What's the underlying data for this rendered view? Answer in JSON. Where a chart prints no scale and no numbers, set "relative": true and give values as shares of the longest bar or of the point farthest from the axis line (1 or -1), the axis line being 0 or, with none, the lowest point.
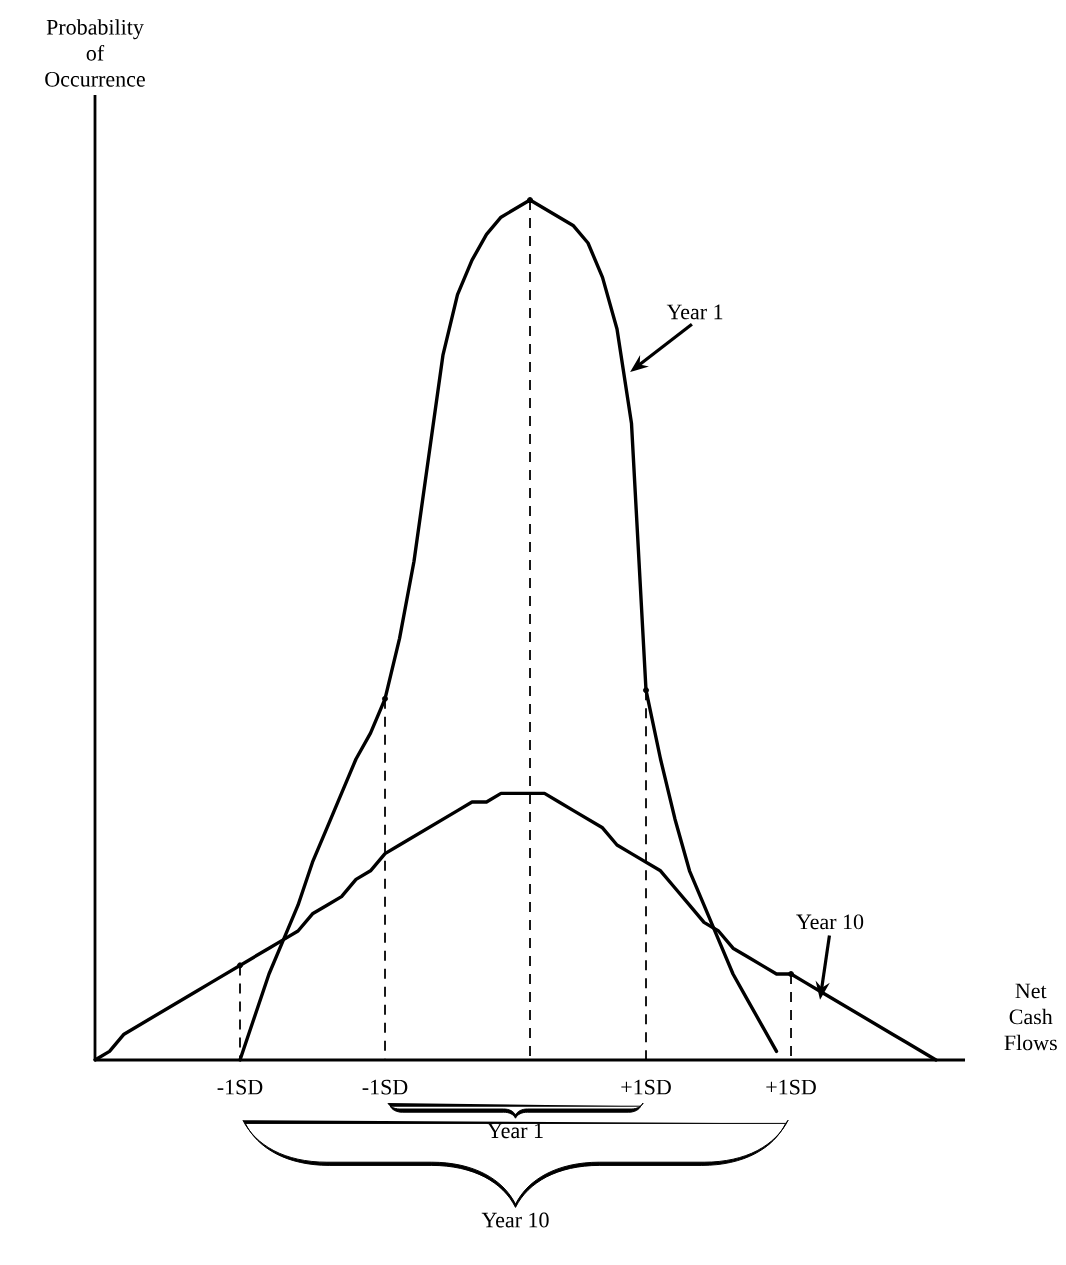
{
  "chart_data": {
    "type": "line",
    "relative": true,
    "xlabel": "Net Cash Flows",
    "categories": [
      null,
      null,
      null,
      null,
      null,
      null,
      null,
      null,
      null,
      null,
      "-1SD",
      null,
      null,
      null,
      null,
      null,
      null,
      null,
      null,
      null,
      "-1SD",
      null,
      null,
      null,
      null,
      null,
      null,
      null,
      null,
      null,
      null,
      null,
      null,
      null,
      null,
      null,
      null,
      null,
      "+1SD",
      null,
      null,
      null,
      null,
      null,
      null,
      null,
      null,
      null,
      "+1SD",
      null,
      null,
      null,
      null,
      null,
      null,
      null,
      null,
      null,
      null,
      null,
      null
    ],
    "line_style": "solid",
    "series": [
      {
        "color": "#000000",
        "values": [
          null,
          null,
          null,
          null,
          null,
          null,
          null,
          null,
          null,
          null,
          0,
          0.05,
          0.1,
          0.14,
          0.18,
          0.23,
          0.27,
          0.31,
          0.35,
          0.38,
          0.42,
          0.49,
          0.58,
          0.7,
          0.82,
          0.89,
          0.93,
          0.96,
          0.98,
          0.99,
          1,
          0.99,
          0.98,
          0.97,
          0.95,
          0.91,
          0.85,
          0.74,
          0.43,
          0.35,
          0.28,
          0.22,
          0.18,
          0.14,
          0.1,
          0.07,
          0.04,
          0.01,
          null,
          null,
          null,
          null,
          null,
          null,
          null,
          null,
          null,
          null,
          null,
          null,
          null
        ]
      },
      {
        "color": "#000000",
        "values": [
          0,
          0.01,
          0.03,
          0.04,
          0.05,
          0.06,
          0.07,
          0.08,
          0.09,
          0.1,
          0.11,
          0.12,
          0.13,
          0.14,
          0.15,
          0.17,
          0.18,
          0.19,
          0.21,
          0.22,
          0.24,
          0.25,
          0.26,
          0.27,
          0.28,
          0.29,
          0.3,
          0.3,
          0.31,
          0.31,
          0.31,
          0.31,
          0.3,
          0.29,
          0.28,
          0.27,
          0.25,
          0.24,
          0.23,
          0.22,
          0.2,
          0.18,
          0.16,
          0.15,
          0.13,
          0.12,
          0.11,
          0.1,
          0.1,
          0.09,
          0.08,
          0.07,
          0.06,
          0.05,
          0.04,
          0.03,
          0.02,
          0.01,
          0,
          null,
          null
        ]
      },
      {
        "color": "#000000",
        "type": "lollipop",
        "line_style": "dashed",
        "marker": "circle",
        "values": [
          null,
          null,
          null,
          null,
          null,
          null,
          null,
          null,
          null,
          null,
          null,
          null,
          null,
          null,
          null,
          null,
          null,
          null,
          null,
          null,
          0.42,
          null,
          null,
          null,
          null,
          null,
          null,
          null,
          null,
          null,
          1,
          null,
          null,
          null,
          null,
          null,
          null,
          null,
          0.43,
          null,
          null,
          null,
          null,
          null,
          null,
          null,
          null,
          null,
          null,
          null,
          null,
          null,
          null,
          null,
          null,
          null,
          null,
          null,
          null,
          null,
          null
        ]
      },
      {
        "color": "#000000",
        "type": "lollipop",
        "line_style": "dashed",
        "marker": "circle",
        "values": [
          null,
          null,
          null,
          null,
          null,
          null,
          null,
          null,
          null,
          null,
          0.11,
          null,
          null,
          null,
          null,
          null,
          null,
          null,
          null,
          null,
          null,
          null,
          null,
          null,
          null,
          null,
          null,
          null,
          null,
          null,
          null,
          null,
          null,
          null,
          null,
          null,
          null,
          null,
          null,
          null,
          null,
          null,
          null,
          null,
          null,
          null,
          null,
          null,
          0.1,
          null,
          null,
          null,
          null,
          null,
          null,
          null,
          null,
          null,
          null,
          null,
          null
        ]
      }
    ],
    "annotations": [
      "Year 1",
      "Year 10",
      "Year 1",
      "Year 10",
      "Probability of Occurrence"
    ]
  }
}
